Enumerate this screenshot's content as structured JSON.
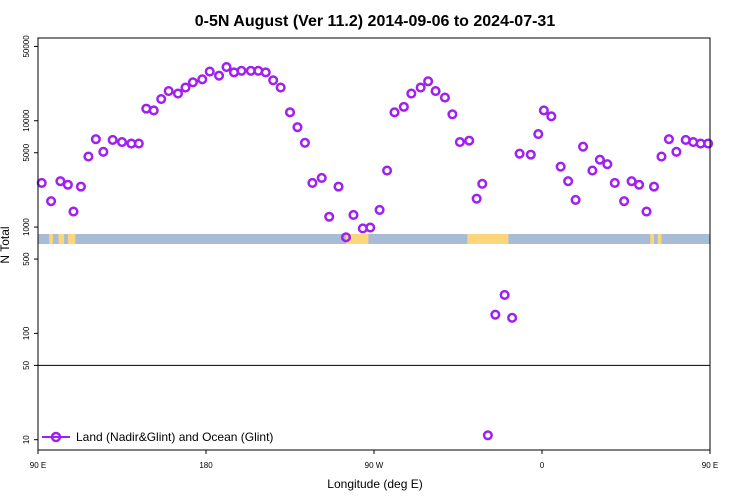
{
  "chart_data": {
    "type": "scatter",
    "title": "0-5N August (Ver 11.2)   2014-09-06 to 2024-07-31",
    "xlabel": "Longitude (deg E)",
    "ylabel": "N Total",
    "yscale": "log",
    "xlim": [
      90,
      450
    ],
    "ylim": [
      8,
      60000
    ],
    "x_ticks": [
      {
        "value": 90,
        "label": "90 E"
      },
      {
        "value": 180,
        "label": "180"
      },
      {
        "value": 270,
        "label": "90 W"
      },
      {
        "value": 360,
        "label": "0"
      },
      {
        "value": 450,
        "label": "90 E"
      },
      {
        "value": 540,
        "label": "180"
      }
    ],
    "y_ticks": [
      {
        "value": 10,
        "label": "10"
      },
      {
        "value": 50,
        "label": "50"
      },
      {
        "value": 100,
        "label": "100"
      },
      {
        "value": 500,
        "label": "500"
      },
      {
        "value": 1000,
        "label": "1000"
      },
      {
        "value": 5000,
        "label": "5000"
      },
      {
        "value": 10000,
        "label": "10000"
      },
      {
        "value": 50000,
        "label": "50000"
      }
    ],
    "reference_line": 50,
    "legend": {
      "label": "Land (Nadir&Glint) and Ocean (Glint)",
      "position": "bottom-left"
    },
    "colors": {
      "series": "#a020f0",
      "ocean": "#a8bcd8",
      "land": "#fcd67a"
    },
    "series": [
      {
        "name": "Land (Nadir&Glint) and Ocean (Glint)",
        "points": [
          [
            92,
            2600
          ],
          [
            97,
            1750
          ],
          [
            102,
            2700
          ],
          [
            106,
            2500
          ],
          [
            109,
            1400
          ],
          [
            113,
            2400
          ],
          [
            117,
            4600
          ],
          [
            121,
            6700
          ],
          [
            125,
            5100
          ],
          [
            130,
            6600
          ],
          [
            135,
            6300
          ],
          [
            140,
            6100
          ],
          [
            144,
            6100
          ],
          [
            148,
            13000
          ],
          [
            152,
            12500
          ],
          [
            156,
            16000
          ],
          [
            160,
            19000
          ],
          [
            165,
            18000
          ],
          [
            169,
            20500
          ],
          [
            173,
            23000
          ],
          [
            178,
            24500
          ],
          [
            182,
            29000
          ],
          [
            187,
            26500
          ],
          [
            191,
            32000
          ],
          [
            195,
            28500
          ],
          [
            199,
            29500
          ],
          [
            204,
            29500
          ],
          [
            208,
            29500
          ],
          [
            212,
            28500
          ],
          [
            216,
            24000
          ],
          [
            220,
            20500
          ],
          [
            225,
            12000
          ],
          [
            229,
            8700
          ],
          [
            233,
            6200
          ],
          [
            237,
            2600
          ],
          [
            242,
            2900
          ],
          [
            246,
            1250
          ],
          [
            251,
            2400
          ],
          [
            255,
            800
          ],
          [
            259,
            1300
          ],
          [
            264,
            970
          ],
          [
            268,
            990
          ],
          [
            273,
            1450
          ],
          [
            277,
            3400
          ],
          [
            281,
            12000
          ],
          [
            286,
            13500
          ],
          [
            290,
            18000
          ],
          [
            295,
            20500
          ],
          [
            299,
            23500
          ],
          [
            303,
            19000
          ],
          [
            308,
            16500
          ],
          [
            312,
            11500
          ],
          [
            316,
            6300
          ],
          [
            321,
            6500
          ],
          [
            325,
            1850
          ],
          [
            328,
            2550
          ],
          [
            331,
            11
          ],
          [
            335,
            150
          ],
          [
            340,
            230
          ],
          [
            344,
            140
          ],
          [
            348,
            4900
          ],
          [
            354,
            4800
          ],
          [
            358,
            7500
          ],
          [
            361,
            12500
          ],
          [
            365,
            11000
          ],
          [
            370,
            3700
          ],
          [
            374,
            2700
          ],
          [
            378,
            1800
          ],
          [
            382,
            5700
          ],
          [
            387,
            3400
          ],
          [
            391,
            4300
          ],
          [
            395,
            3900
          ],
          [
            399,
            2600
          ],
          [
            404,
            1750
          ],
          [
            408,
            2700
          ],
          [
            412,
            2500
          ],
          [
            416,
            1400
          ],
          [
            420,
            2400
          ],
          [
            424,
            4600
          ],
          [
            428,
            6700
          ],
          [
            432,
            5100
          ],
          [
            437,
            6600
          ],
          [
            441,
            6300
          ],
          [
            445,
            6100
          ],
          [
            449,
            6100
          ]
        ]
      }
    ]
  }
}
